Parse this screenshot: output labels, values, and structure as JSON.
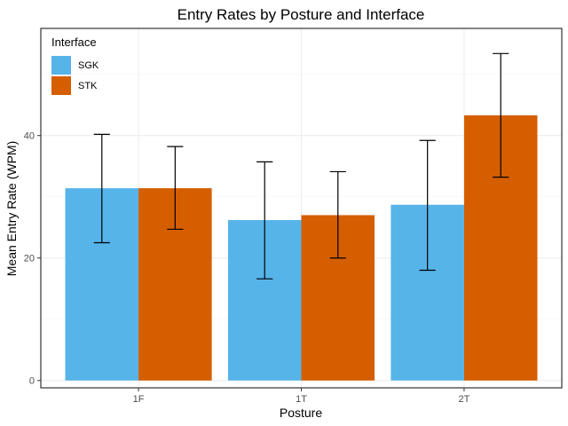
{
  "chart_data": {
    "type": "bar",
    "title": "Entry Rates by Posture and Interface",
    "xlabel": "Posture",
    "ylabel": "Mean Entry Rate (WPM)",
    "categories": [
      "1F",
      "1T",
      "2T"
    ],
    "ylim": [
      -1.2,
      57.5
    ],
    "yticks": [
      0,
      20,
      40
    ],
    "grid": true,
    "legend": {
      "title": "Interface",
      "placement": "top-left"
    },
    "series": [
      {
        "name": "SGK",
        "color": "#56B4E9",
        "values": [
          31.4,
          26.2,
          28.7
        ],
        "error_low": [
          22.5,
          16.6,
          18.0
        ],
        "error_high": [
          40.2,
          35.7,
          39.2
        ]
      },
      {
        "name": "STK",
        "color": "#D55E00",
        "values": [
          31.4,
          27.0,
          43.3
        ],
        "error_low": [
          24.7,
          20.0,
          33.2
        ],
        "error_high": [
          38.2,
          34.1,
          53.4
        ]
      }
    ]
  }
}
